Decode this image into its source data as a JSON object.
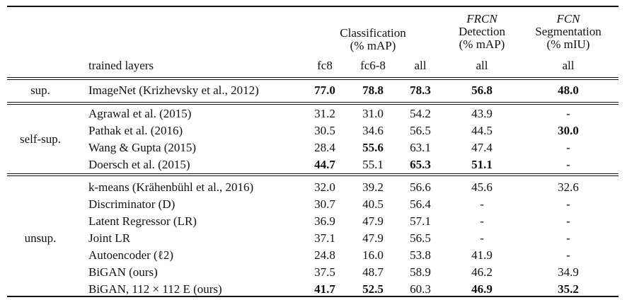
{
  "header": {
    "trained_layers": "trained layers",
    "classification": {
      "line1": "Classification",
      "line2": "(% mAP)"
    },
    "detection": {
      "line1": "FRCN",
      "line2": "Detection",
      "line3": "(% mAP)"
    },
    "segmentation": {
      "line1": "FCN",
      "line2": "Segmentation",
      "line3": "(% mIU)"
    },
    "sub": {
      "fc8": "fc8",
      "fc6_8": "fc6-8",
      "all_cls": "all",
      "all_det": "all",
      "all_seg": "all"
    }
  },
  "groups": [
    {
      "label": "sup.",
      "rows": [
        {
          "method": "ImageNet (Krizhevsky et al., 2012)",
          "fc8": "77.0",
          "fc6_8": "78.8",
          "all": "78.3",
          "det": "56.8",
          "seg": "48.0",
          "bold": [
            "fc8",
            "fc6_8",
            "all",
            "det",
            "seg"
          ]
        }
      ]
    },
    {
      "label": "self-sup.",
      "rows": [
        {
          "method": "Agrawal et al. (2015)",
          "fc8": "31.2",
          "fc6_8": "31.0",
          "all": "54.2",
          "det": "43.9",
          "seg": "-",
          "bold": []
        },
        {
          "method": "Pathak et al. (2016)",
          "fc8": "30.5",
          "fc6_8": "34.6",
          "all": "56.5",
          "det": "44.5",
          "seg": "30.0",
          "bold": [
            "seg"
          ]
        },
        {
          "method": "Wang & Gupta (2015)",
          "fc8": "28.4",
          "fc6_8": "55.6",
          "all": "63.1",
          "det": "47.4",
          "seg": "-",
          "bold": [
            "fc6_8"
          ]
        },
        {
          "method": "Doersch et al. (2015)",
          "fc8": "44.7",
          "fc6_8": "55.1",
          "all": "65.3",
          "det": "51.1",
          "seg": "-",
          "bold": [
            "fc8",
            "all",
            "det"
          ]
        }
      ]
    },
    {
      "label": "unsup.",
      "rows": [
        {
          "method": "k-means (Krähenbühl et al., 2016)",
          "fc8": "32.0",
          "fc6_8": "39.2",
          "all": "56.6",
          "det": "45.6",
          "seg": "32.6",
          "bold": []
        },
        {
          "method": "Discriminator (D)",
          "fc8": "30.7",
          "fc6_8": "40.5",
          "all": "56.4",
          "det": "-",
          "seg": "-",
          "bold": []
        },
        {
          "method": "Latent Regressor (LR)",
          "fc8": "36.9",
          "fc6_8": "47.9",
          "all": "57.1",
          "det": "-",
          "seg": "-",
          "bold": []
        },
        {
          "method": "Joint LR",
          "fc8": "37.1",
          "fc6_8": "47.9",
          "all": "56.5",
          "det": "-",
          "seg": "-",
          "bold": []
        },
        {
          "method": "Autoencoder (ℓ2)",
          "fc8": "24.8",
          "fc6_8": "16.0",
          "all": "53.8",
          "det": "41.9",
          "seg": "-",
          "bold": []
        },
        {
          "method": "BiGAN (ours)",
          "fc8": "37.5",
          "fc6_8": "48.7",
          "all": "58.9",
          "det": "46.2",
          "seg": "34.9",
          "bold": []
        },
        {
          "method": "BiGAN, 112 × 112 E (ours)",
          "fc8": "41.7",
          "fc6_8": "52.5",
          "all": "60.3",
          "det": "46.9",
          "seg": "35.2",
          "bold": [
            "fc8",
            "fc6_8",
            "det",
            "seg"
          ]
        }
      ]
    }
  ]
}
